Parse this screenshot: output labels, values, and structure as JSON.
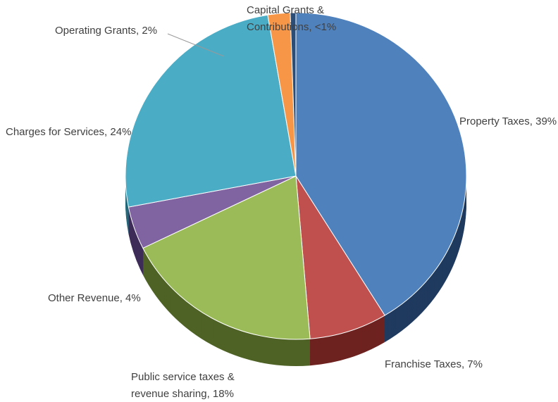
{
  "chart_data": {
    "type": "pie",
    "labels": [
      "Property Taxes, 39%",
      "Franchise Taxes, 7%",
      "Public service taxes &\nrevenue sharing, 18%",
      "Other Revenue, 4%",
      "Charges for Services, 24%",
      "Operating Grants, 2%",
      "Capital Grants &\nContributions, <1%"
    ],
    "values": [
      39,
      7,
      18,
      4,
      24,
      2,
      0.5
    ],
    "colors": [
      "#4f81bd",
      "#c0504d",
      "#9bbb59",
      "#8064a2",
      "#4bacc6",
      "#f79646",
      "#2c4d75"
    ],
    "side_colors": [
      "#1f3a5e",
      "#6e2220",
      "#4f6226",
      "#3e2d58",
      "#25697a",
      "#a55a1c",
      "#16283f"
    ]
  }
}
